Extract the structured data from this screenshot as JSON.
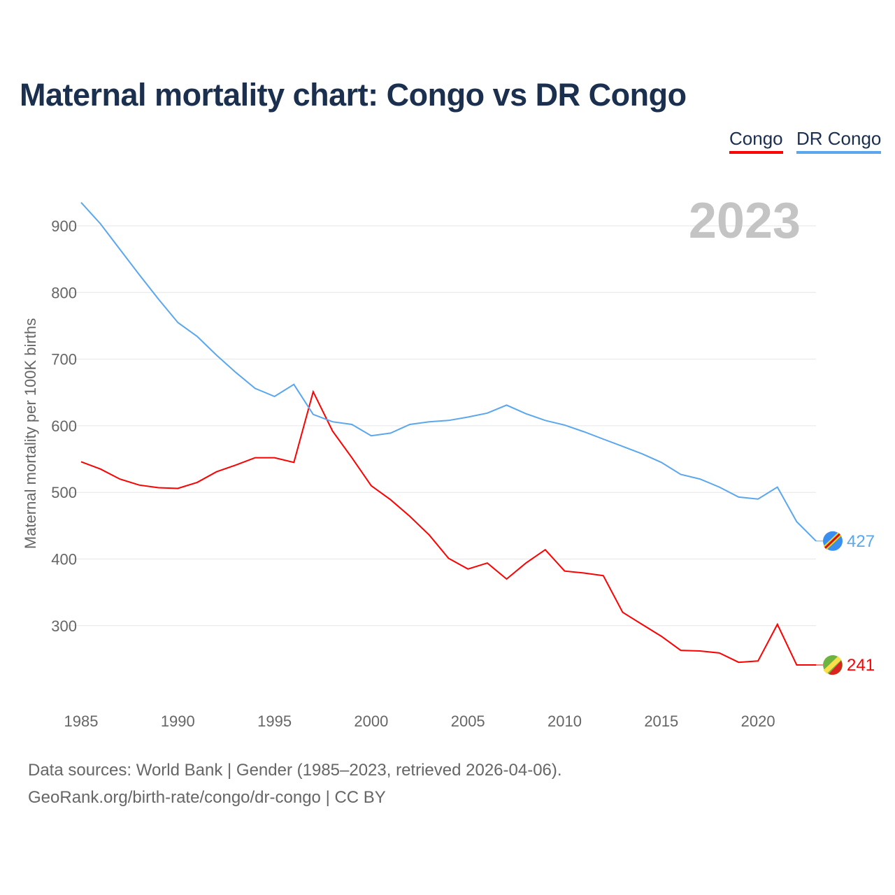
{
  "chart_data": {
    "type": "line",
    "title": "Maternal mortality chart: Congo vs DR Congo",
    "ylabel": "Maternal mortality per 100K births",
    "xlabel": "",
    "year_label": "2023",
    "x": [
      1985,
      1986,
      1987,
      1988,
      1989,
      1990,
      1991,
      1992,
      1993,
      1994,
      1995,
      1996,
      1997,
      1998,
      1999,
      2000,
      2001,
      2002,
      2003,
      2004,
      2005,
      2006,
      2007,
      2008,
      2009,
      2010,
      2011,
      2012,
      2013,
      2014,
      2015,
      2016,
      2017,
      2018,
      2019,
      2020,
      2021,
      2022,
      2023
    ],
    "xticks": [
      "1985",
      "1990",
      "1995",
      "2000",
      "2005",
      "2010",
      "2015",
      "2020"
    ],
    "yticks": [
      "300",
      "400",
      "500",
      "600",
      "700",
      "800",
      "900"
    ],
    "ylim": [
      200,
      960
    ],
    "xlim": [
      1985,
      2023
    ],
    "grid": true,
    "legend_position": "top-right",
    "series": [
      {
        "name": "Congo",
        "color": "#ff0000",
        "end_label": "241",
        "values": [
          546,
          535,
          520,
          511,
          507,
          506,
          515,
          531,
          541,
          552,
          552,
          545,
          651,
          592,
          552,
          510,
          489,
          464,
          436,
          401,
          385,
          394,
          370,
          394,
          414,
          382,
          379,
          375,
          320,
          302,
          284,
          263,
          262,
          259,
          245,
          247,
          302,
          241,
          241
        ]
      },
      {
        "name": "DR Congo",
        "color": "#5ba7ee",
        "end_label": "427",
        "values": [
          935,
          903,
          865,
          827,
          790,
          755,
          734,
          706,
          680,
          656,
          644,
          662,
          617,
          606,
          602,
          585,
          589,
          602,
          606,
          608,
          613,
          619,
          631,
          618,
          608,
          601,
          591,
          580,
          569,
          558,
          545,
          527,
          520,
          508,
          493,
          490,
          508,
          456,
          427
        ]
      }
    ]
  },
  "footer": {
    "line1": "Data sources: World Bank | Gender (1985–2023, retrieved 2026-04-06).",
    "line2": "GeoRank.org/birth-rate/congo/dr-congo | CC BY"
  }
}
